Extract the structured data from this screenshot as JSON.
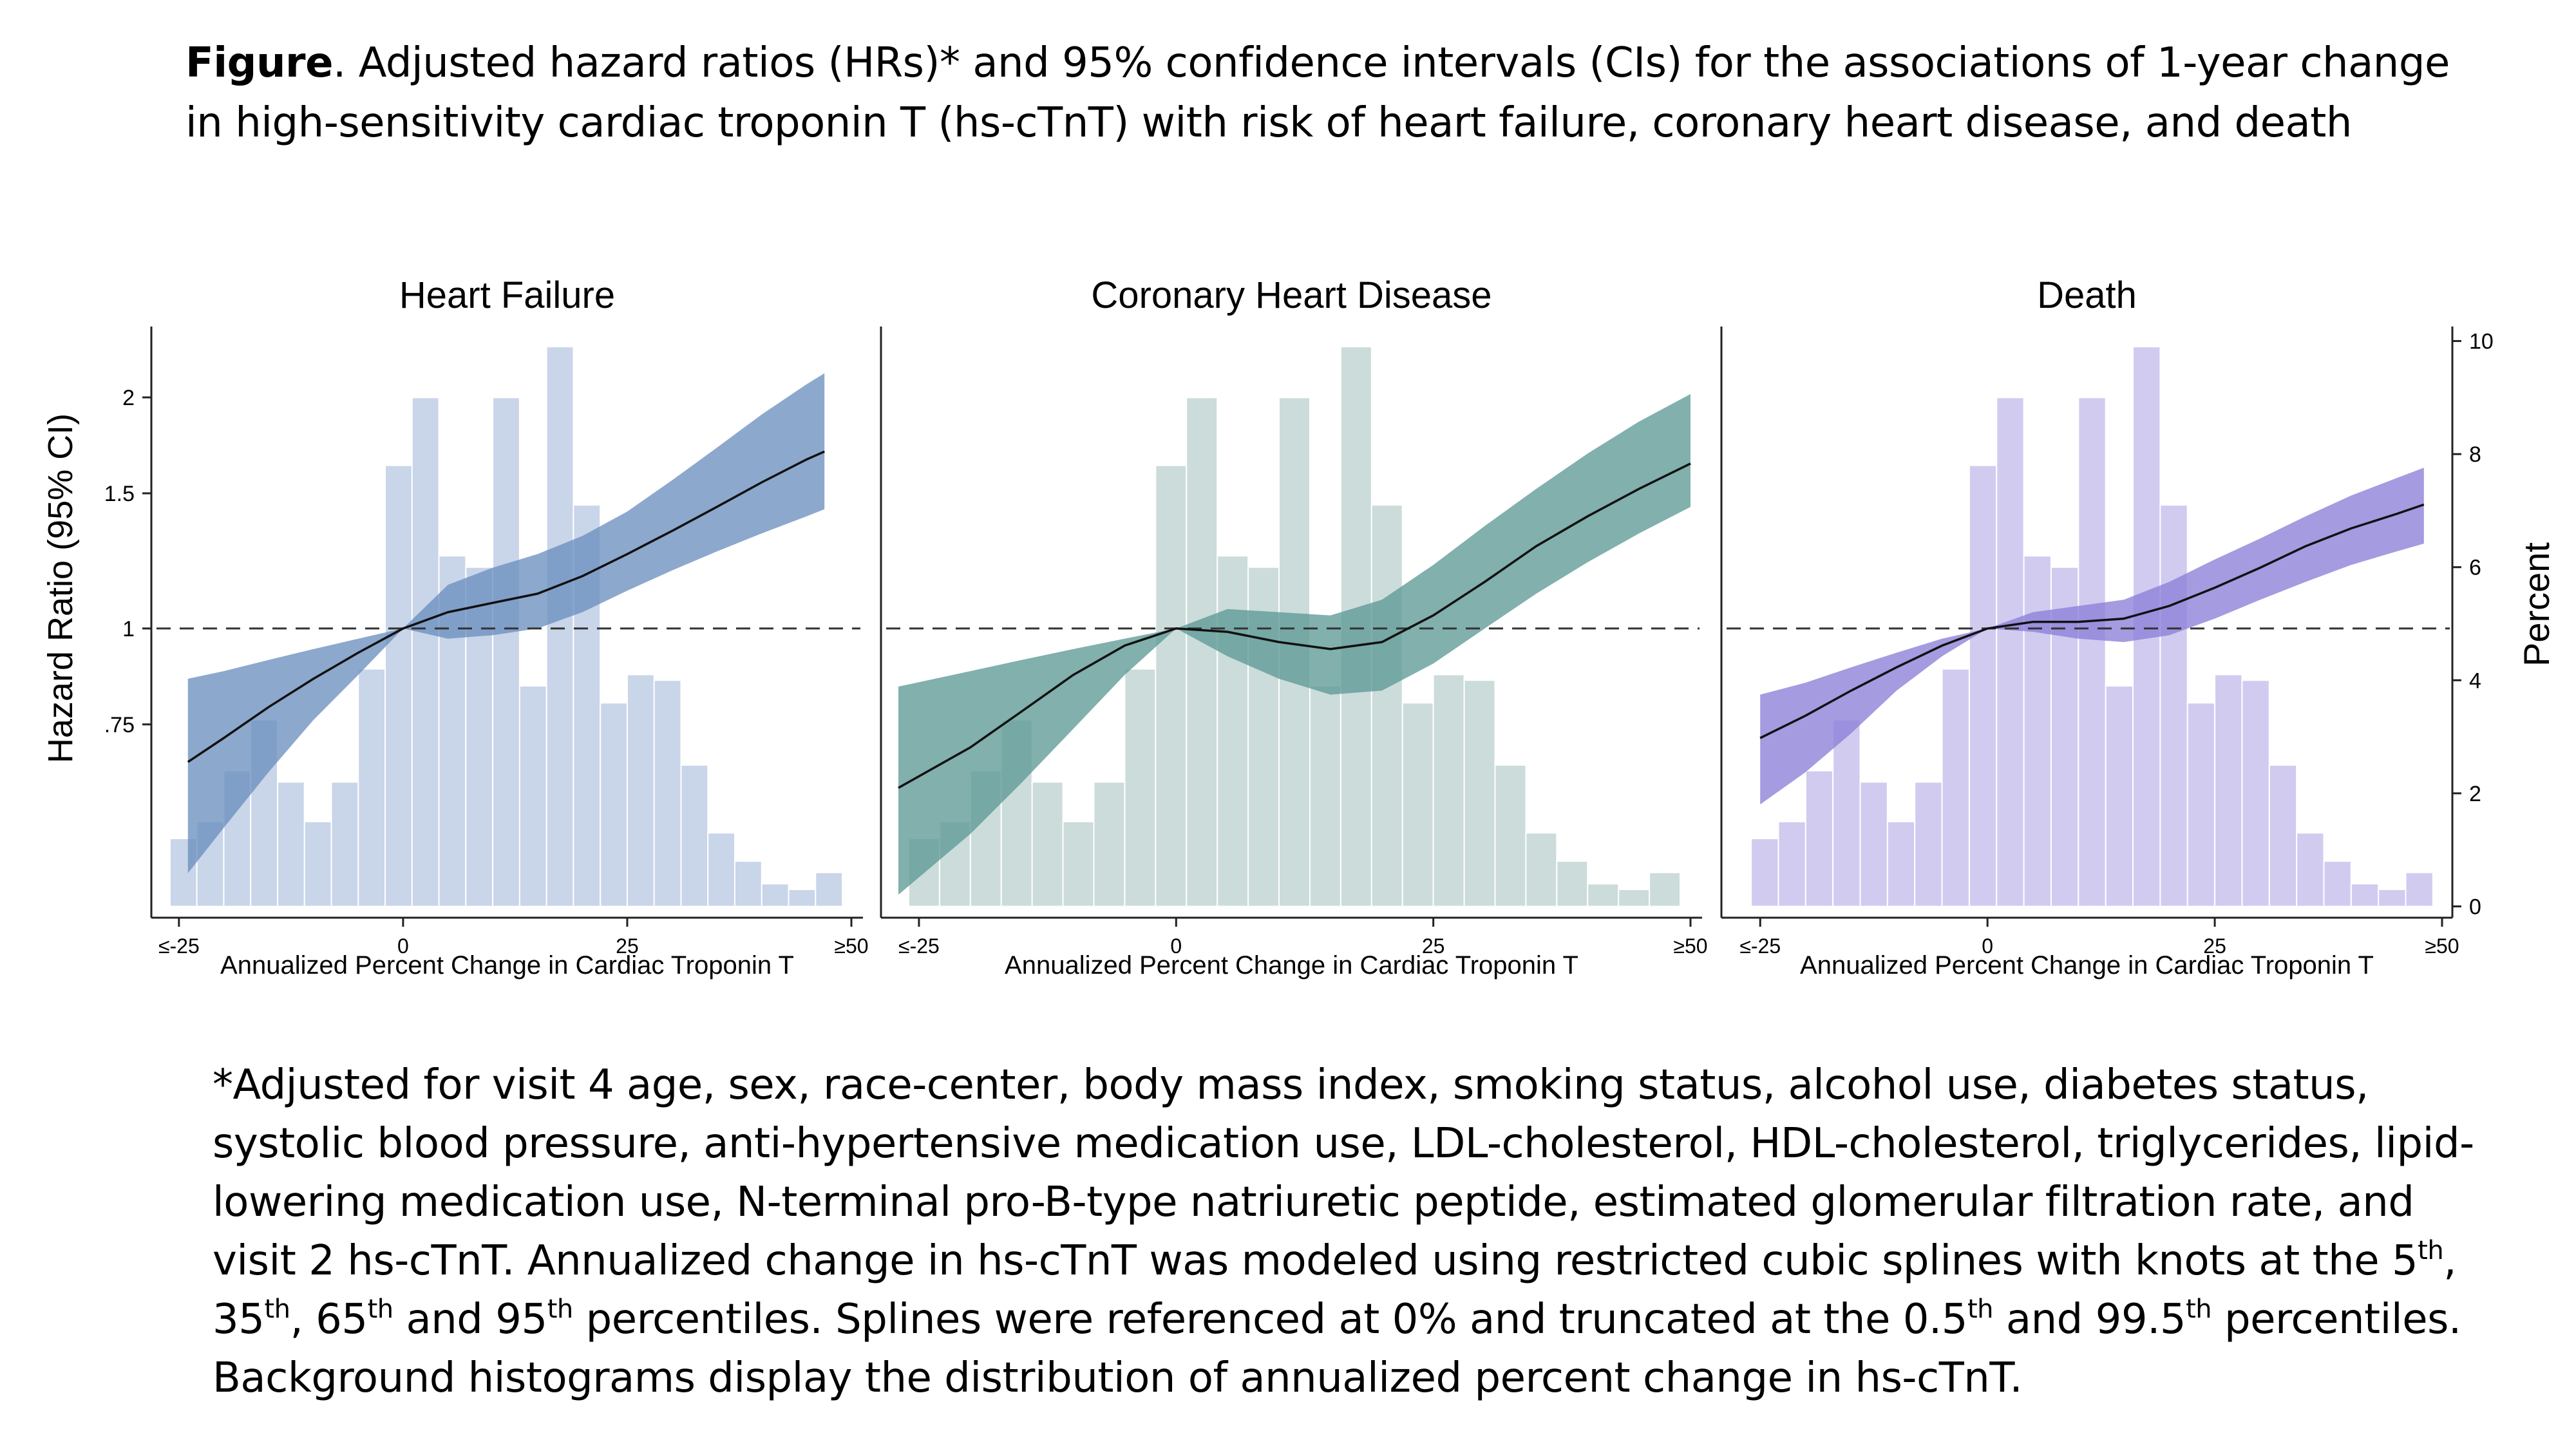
{
  "caption": {
    "figure_label": "Figure",
    "text": ". Adjusted hazard ratios (HRs)* and 95% confidence intervals (CIs) for the associations of 1-year change in high-sensitivity cardiac troponin T (hs-cTnT) with risk of heart failure, coronary heart disease, and death"
  },
  "footnote": {
    "p1": "*Adjusted for visit 4 age, sex, race-center, body mass index, smoking status, alcohol use, diabetes status, systolic blood pressure, anti-hypertensive medication use, LDL-cholesterol, HDL-cholesterol, triglycerides, lipid-lowering medication use, N-terminal pro-B-type natriuretic peptide, estimated glomerular filtration rate, and visit 2 hs-cTnT. Annualized change in hs-cTnT was modeled using restricted cubic splines with knots at the 5",
    "sup1": "th",
    "p2": ", 35",
    "sup2": "th",
    "p3": ", 65",
    "sup3": "th",
    "p4": " and 95",
    "sup4": "th",
    "p5": " percentiles. Splines were referenced at 0% and truncated at the 0.5",
    "sup5": "th",
    "p6": " and 99.5",
    "sup6": "th",
    "p7": " percentiles. Background histograms display the distribution of annualized percent change in hs-cTnT."
  },
  "chart_data": {
    "type": "line",
    "shared": {
      "xlabel": "Annualized Percent Change in Cardiac Troponin T",
      "x_ticks": [
        -25,
        0,
        25,
        50
      ],
      "x_tick_labels": [
        "≤-25",
        "0",
        "25",
        "≥50"
      ],
      "xlim": [
        -27,
        50
      ],
      "ylabel_left": "Hazard Ratio (95% CI)",
      "y_ticks_left": [
        0.75,
        1,
        1.5,
        2
      ],
      "y_tick_labels_left": [
        ".75",
        "1",
        "1.5",
        "2"
      ],
      "ylim_left": [
        0.42,
        2.45
      ],
      "ylabel_right": "Percent",
      "y_ticks_right": [
        0,
        2,
        4,
        6,
        8,
        10
      ],
      "ylim_right": [
        -0.2,
        10.2
      ],
      "reference_line_hr": 1,
      "histogram_bin_edges": [
        -26,
        -23,
        -20,
        -17,
        -14,
        -11,
        -8,
        -5,
        -2,
        1,
        4,
        7,
        10,
        13,
        16,
        19,
        22,
        25,
        28,
        31,
        34,
        37,
        40,
        43,
        46,
        49
      ],
      "histogram_percent": [
        1.2,
        1.5,
        2.4,
        3.3,
        2.2,
        1.5,
        2.2,
        4.2,
        7.8,
        9.0,
        6.2,
        6.0,
        9.0,
        3.9,
        9.9,
        7.1,
        3.6,
        4.1,
        4.0,
        2.5,
        1.3,
        0.8,
        0.4,
        0.3,
        0.6
      ]
    },
    "panels": [
      {
        "title": "Heart Failure",
        "colors": {
          "band": "#6b8fbf",
          "histogram": "#c7d3e8"
        },
        "series": {
          "x": [
            -24,
            -20,
            -15,
            -10,
            -5,
            0,
            5,
            10,
            15,
            20,
            25,
            30,
            35,
            40,
            45,
            47
          ],
          "hr": [
            0.67,
            0.72,
            0.79,
            0.86,
            0.93,
            1.0,
            1.05,
            1.08,
            1.11,
            1.17,
            1.25,
            1.34,
            1.44,
            1.55,
            1.66,
            1.7
          ],
          "lower": [
            0.48,
            0.55,
            0.65,
            0.76,
            0.87,
            1.0,
            0.97,
            0.98,
            1.0,
            1.05,
            1.12,
            1.19,
            1.26,
            1.33,
            1.4,
            1.43
          ],
          "upper": [
            0.86,
            0.88,
            0.91,
            0.94,
            0.97,
            1.0,
            1.14,
            1.2,
            1.25,
            1.32,
            1.42,
            1.56,
            1.72,
            1.9,
            2.08,
            2.15
          ]
        }
      },
      {
        "title": "Coronary Heart Disease",
        "colors": {
          "band": "#5e9a96",
          "histogram": "#c9dbd9"
        },
        "series": {
          "x": [
            -27,
            -20,
            -15,
            -10,
            -5,
            0,
            5,
            10,
            15,
            20,
            25,
            30,
            35,
            40,
            45,
            50
          ],
          "hr": [
            0.62,
            0.7,
            0.78,
            0.87,
            0.95,
            1.0,
            0.99,
            0.96,
            0.94,
            0.96,
            1.04,
            1.15,
            1.28,
            1.4,
            1.52,
            1.64
          ],
          "lower": [
            0.45,
            0.54,
            0.63,
            0.74,
            0.87,
            1.0,
            0.92,
            0.86,
            0.82,
            0.83,
            0.9,
            1.0,
            1.11,
            1.22,
            1.33,
            1.44
          ],
          "upper": [
            0.84,
            0.88,
            0.91,
            0.94,
            0.97,
            1.0,
            1.06,
            1.05,
            1.04,
            1.09,
            1.21,
            1.36,
            1.52,
            1.69,
            1.86,
            2.02
          ]
        }
      },
      {
        "title": "Death",
        "colors": {
          "band": "#8a7fd9",
          "histogram": "#cfc9f0"
        },
        "series": {
          "x": [
            -25,
            -20,
            -15,
            -10,
            -5,
            0,
            5,
            10,
            15,
            20,
            25,
            30,
            35,
            40,
            45,
            48
          ],
          "hr": [
            0.72,
            0.77,
            0.83,
            0.89,
            0.95,
            1.0,
            1.02,
            1.02,
            1.03,
            1.07,
            1.13,
            1.2,
            1.28,
            1.35,
            1.41,
            1.45
          ],
          "lower": [
            0.59,
            0.65,
            0.73,
            0.83,
            0.92,
            1.0,
            0.99,
            0.97,
            0.96,
            0.98,
            1.03,
            1.09,
            1.15,
            1.21,
            1.26,
            1.29
          ],
          "upper": [
            0.82,
            0.85,
            0.89,
            0.93,
            0.97,
            1.0,
            1.05,
            1.07,
            1.09,
            1.15,
            1.23,
            1.31,
            1.4,
            1.49,
            1.57,
            1.62
          ]
        }
      }
    ]
  }
}
